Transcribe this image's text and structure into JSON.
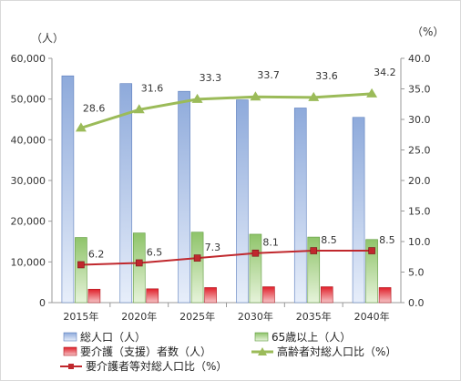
{
  "chart_data": {
    "type": "bar",
    "units": {
      "left": "（人）",
      "right": "（%）"
    },
    "categories": [
      "2015年",
      "2020年",
      "2025年",
      "2030年",
      "2035年",
      "2040年"
    ],
    "y_left": {
      "min": 0,
      "max": 60000,
      "ticks": [
        "0",
        "10,000",
        "20,000",
        "30,000",
        "40,000",
        "50,000",
        "60,000"
      ]
    },
    "y_right": {
      "min": 0,
      "max": 40,
      "ticks": [
        "0.0",
        "5.0",
        "10.0",
        "15.0",
        "20.0",
        "25.0",
        "30.0",
        "35.0",
        "40.0"
      ]
    },
    "bar_series": [
      {
        "name": "総人口（人）",
        "color": "#8eaadb",
        "values": [
          55700,
          53800,
          51900,
          49800,
          47800,
          45500
        ]
      },
      {
        "name": "65歳以上（人）",
        "color": "#8fc46a",
        "values": [
          16000,
          17100,
          17300,
          16800,
          16100,
          15500
        ]
      },
      {
        "name": "要介護（支援）者数（人）",
        "color": "#e0202a",
        "values": [
          3300,
          3400,
          3700,
          3900,
          3900,
          3700
        ]
      }
    ],
    "line_series": [
      {
        "name": "高齢者対総人口比（%）",
        "color": "#9bbb59",
        "marker": "triangle",
        "values": [
          28.6,
          31.6,
          33.3,
          33.7,
          33.6,
          34.2
        ],
        "labels": [
          "28.6",
          "31.6",
          "33.3",
          "33.7",
          "33.6",
          "34.2"
        ]
      },
      {
        "name": "要介護者等対総人口比（%）",
        "color": "#c0282d",
        "marker": "square",
        "values": [
          6.2,
          6.5,
          7.3,
          8.1,
          8.5,
          8.5
        ],
        "labels": [
          "6.2",
          "6.5",
          "7.3",
          "8.1",
          "8.5",
          "8.5"
        ]
      }
    ],
    "grid": false,
    "legend_position": "bottom"
  }
}
